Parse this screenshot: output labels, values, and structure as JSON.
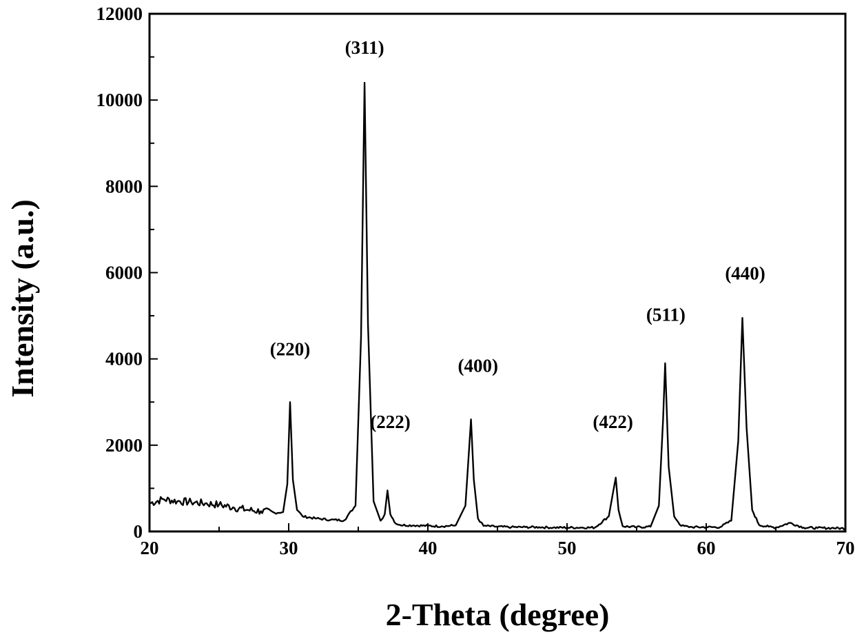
{
  "chart_data": {
    "type": "line",
    "xlabel": "2-Theta (degree)",
    "ylabel": "Intensity (a.u.)",
    "xlim": [
      20,
      70
    ],
    "ylim": [
      0,
      12000
    ],
    "x_ticks": [
      20,
      30,
      40,
      50,
      60,
      70
    ],
    "y_ticks": [
      0,
      2000,
      4000,
      6000,
      8000,
      10000,
      12000
    ],
    "grid": false,
    "legend": "none",
    "line_color": "#000000",
    "series": [
      {
        "x": [
          20,
          21,
          22,
          23,
          24,
          25,
          26,
          27,
          28,
          29,
          29.6,
          29.9,
          30.1,
          30.3,
          30.6,
          31,
          32,
          33,
          34,
          34.8,
          35.2,
          35.45,
          35.7,
          36.1,
          36.6,
          36.9,
          37.1,
          37.3,
          37.7,
          38,
          39,
          40,
          41,
          42,
          42.7,
          43.0,
          43.1,
          43.3,
          43.6,
          44,
          45,
          46,
          47,
          48,
          49,
          50,
          51,
          52,
          53,
          53.3,
          53.5,
          53.7,
          54,
          55,
          56,
          56.6,
          56.9,
          57.05,
          57.3,
          57.7,
          58.2,
          59,
          60,
          61,
          61.8,
          62.3,
          62.6,
          62.9,
          63.3,
          63.8,
          64.5,
          65,
          66,
          67,
          68,
          69,
          70
        ],
        "y": [
          650,
          750,
          700,
          680,
          650,
          620,
          560,
          500,
          470,
          430,
          450,
          1100,
          3000,
          1200,
          500,
          350,
          300,
          270,
          260,
          600,
          4500,
          10400,
          4800,
          700,
          250,
          400,
          950,
          400,
          180,
          150,
          140,
          130,
          120,
          140,
          600,
          2100,
          2600,
          1200,
          300,
          130,
          110,
          100,
          100,
          100,
          90,
          90,
          90,
          90,
          350,
          900,
          1250,
          500,
          120,
          100,
          110,
          600,
          2600,
          3900,
          1500,
          350,
          130,
          100,
          100,
          100,
          250,
          2100,
          4950,
          2400,
          500,
          150,
          110,
          90,
          200,
          90,
          80,
          80,
          70
        ]
      }
    ],
    "annotations": [
      {
        "text": "(220)",
        "x": 30.1,
        "y": 4080
      },
      {
        "text": "(311)",
        "x": 35.45,
        "y": 11070
      },
      {
        "text": "(222)",
        "x": 37.3,
        "y": 2400
      },
      {
        "text": "(400)",
        "x": 43.6,
        "y": 3700
      },
      {
        "text": "(422)",
        "x": 53.3,
        "y": 2400
      },
      {
        "text": "(511)",
        "x": 57.1,
        "y": 4880
      },
      {
        "text": "(440)",
        "x": 62.8,
        "y": 5840
      }
    ]
  }
}
